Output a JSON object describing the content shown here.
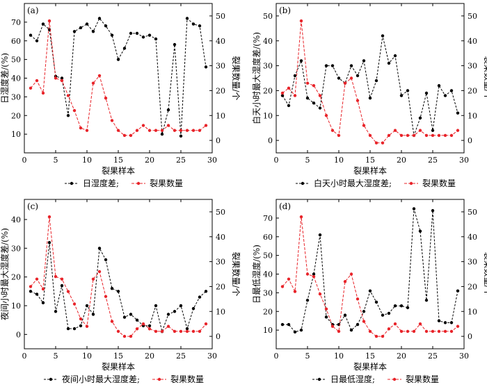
{
  "chart_data": [
    {
      "type": "line",
      "panel_label": "(a)",
      "xlabel": "裂果样本",
      "ylabel_left": "日湿度差/(%)",
      "ylabel_right": "裂果数量/个",
      "xlim": [
        0,
        30
      ],
      "xticks": [
        0,
        5,
        10,
        15,
        20,
        25,
        30
      ],
      "ylim_left": [
        0,
        80
      ],
      "yticks_left": [
        10,
        20,
        30,
        40,
        50,
        60,
        70
      ],
      "ylim_right": [
        -5,
        55
      ],
      "yticks_right": [
        0,
        10,
        20,
        30,
        40,
        50
      ],
      "legend_text": [
        "日湿度差;",
        "裂果数量"
      ],
      "series": [
        {
          "name": "日湿度差",
          "axis": "left",
          "color": "#000000",
          "x": [
            1,
            2,
            3,
            4,
            5,
            6,
            7,
            8,
            9,
            10,
            11,
            12,
            13,
            14,
            15,
            16,
            17,
            18,
            19,
            20,
            21,
            22,
            23,
            24,
            25,
            26,
            27,
            28,
            29
          ],
          "values": [
            63,
            60,
            69,
            66,
            41,
            40,
            20,
            65,
            67,
            69,
            65,
            72,
            68,
            63,
            50,
            56,
            64,
            64,
            62,
            63,
            61,
            10,
            23,
            58,
            9,
            72,
            69,
            68,
            46
          ]
        },
        {
          "name": "裂果数量",
          "axis": "right",
          "color": "#e8242a",
          "x": [
            1,
            2,
            3,
            4,
            5,
            6,
            7,
            8,
            9,
            10,
            11,
            12,
            13,
            14,
            15,
            16,
            17,
            18,
            19,
            20,
            21,
            22,
            23,
            24,
            25,
            26,
            27,
            28,
            29
          ],
          "values": [
            21,
            24,
            19,
            48,
            25,
            24,
            18,
            12,
            5,
            4,
            23,
            26,
            17,
            8,
            4,
            2,
            2,
            4,
            6,
            4,
            4,
            4,
            6,
            4,
            4,
            4,
            4,
            4,
            6
          ]
        }
      ]
    },
    {
      "type": "line",
      "panel_label": "(b)",
      "xlabel": "裂果样本",
      "ylabel_left": "白天小时最大湿度差/(%)",
      "ylabel_right": "裂果数量/个",
      "xlim": [
        0,
        30
      ],
      "xticks": [
        0,
        5,
        10,
        15,
        20,
        25,
        30
      ],
      "ylim_left": [
        -5,
        55
      ],
      "yticks_left": [
        0,
        10,
        20,
        30,
        40,
        50
      ],
      "ylim_right": [
        -5,
        55
      ],
      "yticks_right": [
        0,
        10,
        20,
        30,
        40,
        50
      ],
      "legend_text": [
        "白天小时最大湿度差;",
        "裂果数量"
      ],
      "series": [
        {
          "name": "白天小时最大湿度差",
          "axis": "left",
          "color": "#000000",
          "x": [
            1,
            2,
            3,
            4,
            5,
            6,
            7,
            8,
            9,
            10,
            11,
            12,
            13,
            14,
            15,
            16,
            17,
            18,
            19,
            20,
            21,
            22,
            23,
            24,
            25,
            26,
            27,
            28,
            29
          ],
          "values": [
            18,
            14,
            26,
            32,
            17,
            15,
            13,
            30,
            30,
            25,
            23,
            30,
            26,
            32,
            17,
            24,
            42,
            31,
            34,
            18,
            20,
            2,
            9,
            19,
            4,
            22,
            18,
            20,
            11
          ]
        },
        {
          "name": "裂果数量",
          "axis": "right",
          "color": "#e8242a",
          "x": [
            1,
            2,
            3,
            4,
            5,
            6,
            7,
            8,
            9,
            10,
            11,
            12,
            13,
            14,
            15,
            16,
            17,
            18,
            19,
            20,
            21,
            22,
            23,
            24,
            25,
            26,
            27,
            28,
            29
          ],
          "values": [
            19,
            21,
            18,
            48,
            23,
            22,
            18,
            10,
            4,
            2,
            23,
            25,
            16,
            6,
            2,
            -1,
            -1,
            2,
            4,
            2,
            2,
            2,
            4,
            2,
            2,
            2,
            2,
            2,
            4
          ]
        }
      ]
    },
    {
      "type": "line",
      "panel_label": "(c)",
      "xlabel": "裂果样本",
      "ylabel_left": "夜间小时最大湿度差/(%)",
      "ylabel_right": "裂果数量/个",
      "xlim": [
        0,
        30
      ],
      "xticks": [
        0,
        5,
        10,
        15,
        20,
        25,
        30
      ],
      "ylim_left": [
        -5,
        47
      ],
      "yticks_left": [
        0,
        10,
        20,
        30,
        40
      ],
      "ylim_right": [
        -5,
        55
      ],
      "yticks_right": [
        0,
        10,
        20,
        30,
        40,
        50
      ],
      "legend_text": [
        "夜间小时最大湿度差;",
        "裂果数量"
      ],
      "series": [
        {
          "name": "夜间小时最大湿度差",
          "axis": "left",
          "color": "#000000",
          "x": [
            1,
            2,
            3,
            4,
            5,
            6,
            7,
            8,
            9,
            10,
            11,
            12,
            13,
            14,
            15,
            16,
            17,
            18,
            19,
            20,
            21,
            22,
            23,
            24,
            25,
            26,
            27,
            28,
            29
          ],
          "values": [
            15,
            14,
            11,
            32,
            8,
            17,
            2,
            2,
            3,
            10,
            7,
            30,
            26,
            16,
            15,
            6,
            7,
            5,
            3,
            3,
            10,
            1,
            7,
            8,
            10,
            2,
            9,
            13,
            15
          ]
        },
        {
          "name": "裂果数量",
          "axis": "right",
          "color": "#e8242a",
          "x": [
            1,
            2,
            3,
            4,
            5,
            6,
            7,
            8,
            9,
            10,
            11,
            12,
            13,
            14,
            15,
            16,
            17,
            18,
            19,
            20,
            21,
            22,
            23,
            24,
            25,
            26,
            27,
            28,
            29
          ],
          "values": [
            20,
            23,
            19,
            48,
            24,
            23,
            18,
            13,
            7,
            4,
            23,
            26,
            16,
            6,
            2,
            0,
            0,
            3,
            5,
            3,
            2,
            2,
            4,
            2,
            2,
            2,
            2,
            2,
            5
          ]
        }
      ]
    },
    {
      "type": "line",
      "panel_label": "(d)",
      "xlabel": "裂果样本",
      "ylabel_left": "日最低湿度/(%)",
      "ylabel_right": "裂果数量/个",
      "xlim": [
        0,
        30
      ],
      "xticks": [
        0,
        5,
        10,
        15,
        20,
        25,
        30
      ],
      "ylim_left": [
        0,
        80
      ],
      "yticks_left": [
        10,
        20,
        30,
        40,
        50,
        60,
        70
      ],
      "ylim_right": [
        -5,
        55
      ],
      "yticks_right": [
        0,
        10,
        20,
        30,
        40,
        50
      ],
      "legend_text": [
        "日最低湿度;",
        "裂果数量"
      ],
      "series": [
        {
          "name": "日最低湿度",
          "axis": "left",
          "color": "#000000",
          "x": [
            1,
            2,
            3,
            4,
            5,
            6,
            7,
            8,
            9,
            10,
            11,
            12,
            13,
            14,
            15,
            16,
            17,
            18,
            19,
            20,
            21,
            22,
            23,
            24,
            25,
            26,
            27,
            28,
            29
          ],
          "values": [
            13,
            13,
            9,
            10,
            26,
            40,
            61,
            17,
            13,
            13,
            18,
            10,
            13,
            20,
            31,
            25,
            18,
            19,
            23,
            23,
            22,
            75,
            63,
            26,
            74,
            15,
            14,
            14,
            31
          ]
        },
        {
          "name": "裂果数量",
          "axis": "right",
          "color": "#e8242a",
          "x": [
            1,
            2,
            3,
            4,
            5,
            6,
            7,
            8,
            9,
            10,
            11,
            12,
            13,
            14,
            15,
            16,
            17,
            18,
            19,
            20,
            21,
            22,
            23,
            24,
            25,
            26,
            27,
            28,
            29
          ],
          "values": [
            20,
            23,
            18,
            48,
            25,
            24,
            17,
            11,
            4,
            2,
            22,
            25,
            15,
            6,
            2,
            0,
            0,
            3,
            5,
            2,
            2,
            2,
            5,
            2,
            2,
            2,
            2,
            2,
            4
          ]
        }
      ]
    }
  ]
}
